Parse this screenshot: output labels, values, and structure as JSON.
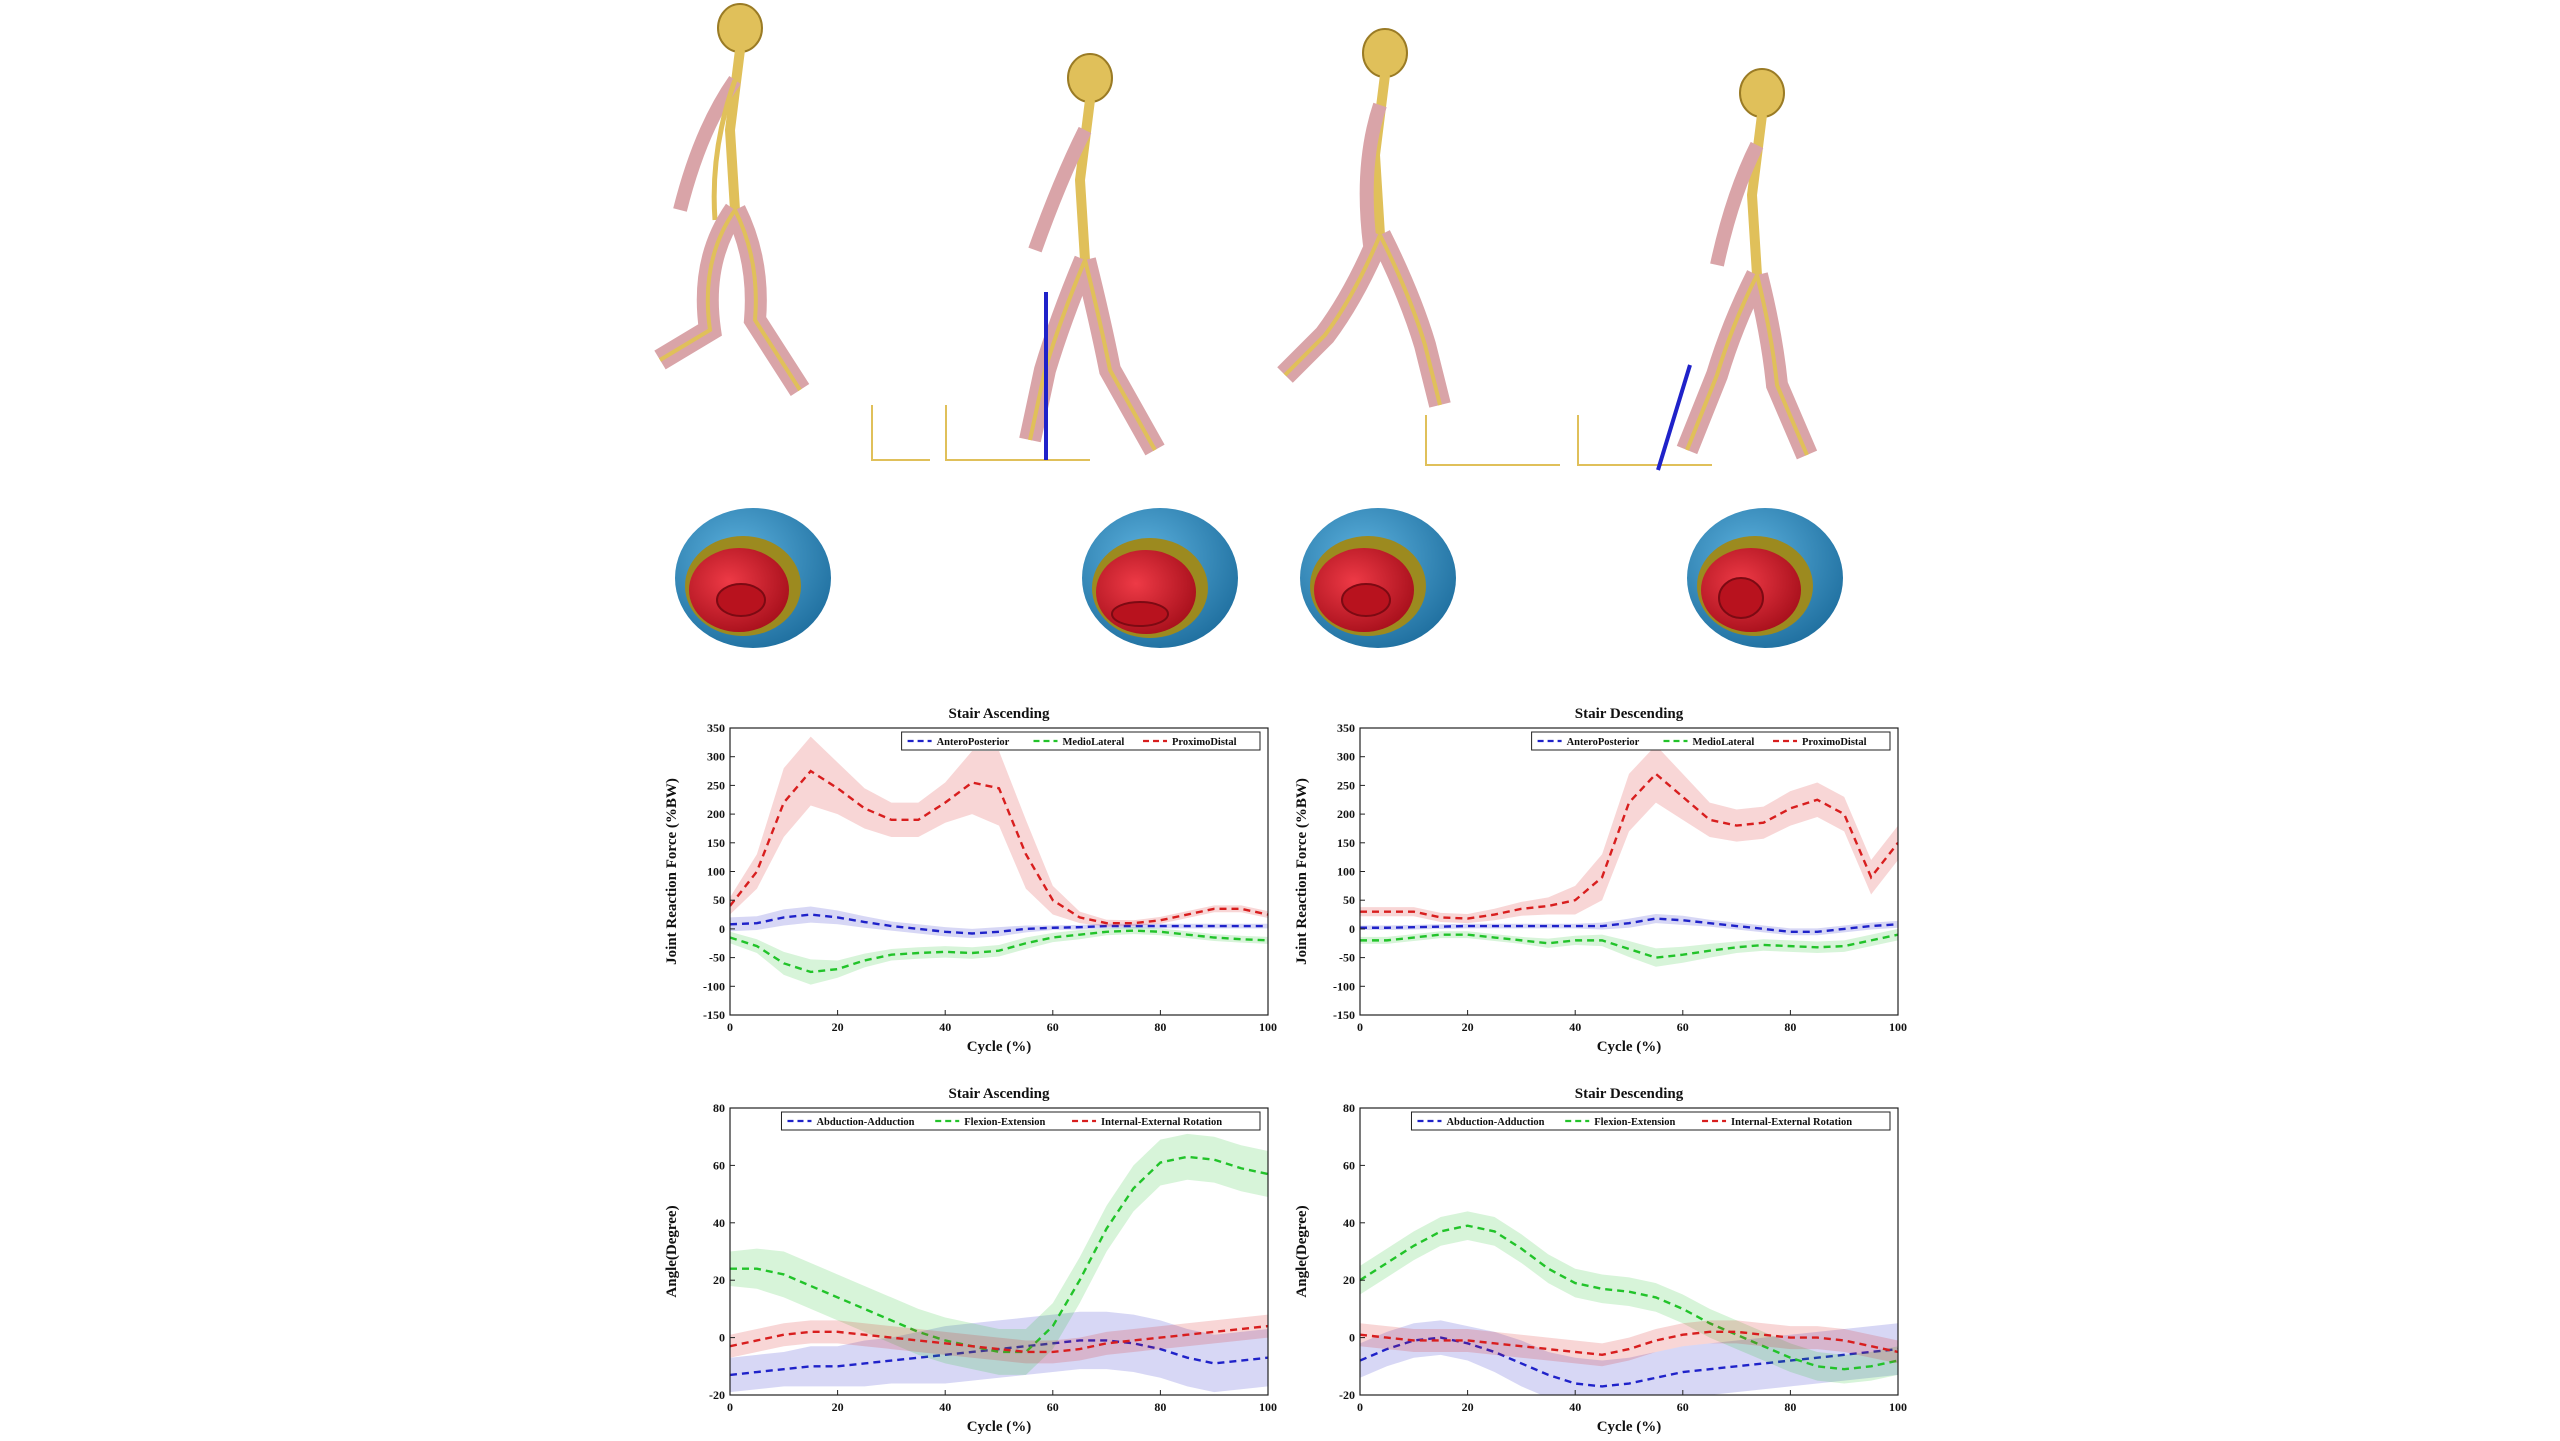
{
  "colors": {
    "antero_posterior": "#1f22c9",
    "medio_lateral": "#22c32a",
    "proximo_distal": "#d81e1e",
    "abduction_adduction": "#1f22c9",
    "flexion_extension": "#22c32a",
    "internal_external_rotation": "#d81e1e",
    "bone": "#e0c05a",
    "muscle": "#d9a4a8",
    "cup_shell": "#3a8fc4",
    "cup_liner": "#d01a2a"
  },
  "illustration": {
    "icons": [
      "skeleton-model-icon",
      "acetabular-cup-icon",
      "force-vector-icon"
    ]
  },
  "chart_data": [
    {
      "type": "line",
      "title": "Stair Ascending",
      "xlabel": "Cycle (%)",
      "ylabel": "Joint Reaction Force (%BW)",
      "xlim": [
        0,
        100
      ],
      "ylim": [
        -150,
        350
      ],
      "xticks": [
        0,
        20,
        40,
        60,
        80,
        100
      ],
      "yticks": [
        -150,
        -100,
        -50,
        0,
        50,
        100,
        150,
        200,
        250,
        300,
        350
      ],
      "grid": false,
      "legend": "top",
      "x": [
        0,
        5,
        10,
        15,
        20,
        25,
        30,
        35,
        40,
        45,
        50,
        55,
        60,
        65,
        70,
        75,
        80,
        85,
        90,
        95,
        100
      ],
      "series": [
        {
          "name": "AnteroPosterior",
          "color": "#1f22c9",
          "values": [
            8,
            10,
            20,
            25,
            20,
            12,
            5,
            0,
            -5,
            -8,
            -5,
            0,
            2,
            3,
            5,
            5,
            5,
            5,
            5,
            5,
            5
          ],
          "band": [
            12,
            12,
            14,
            14,
            12,
            10,
            8,
            8,
            8,
            8,
            8,
            6,
            4,
            4,
            4,
            4,
            4,
            4,
            4,
            4,
            4
          ]
        },
        {
          "name": "MedioLateral",
          "color": "#22c32a",
          "values": [
            -15,
            -30,
            -60,
            -75,
            -70,
            -55,
            -45,
            -42,
            -40,
            -42,
            -38,
            -25,
            -15,
            -10,
            -5,
            -3,
            -5,
            -10,
            -15,
            -18,
            -20
          ],
          "band": [
            10,
            12,
            20,
            22,
            15,
            12,
            10,
            10,
            10,
            10,
            10,
            10,
            8,
            8,
            6,
            6,
            6,
            6,
            6,
            6,
            6
          ]
        },
        {
          "name": "ProximoDistal",
          "color": "#d81e1e",
          "values": [
            40,
            100,
            220,
            275,
            245,
            210,
            190,
            190,
            220,
            255,
            245,
            130,
            50,
            20,
            10,
            10,
            15,
            25,
            35,
            35,
            25
          ],
          "band": [
            15,
            30,
            60,
            60,
            45,
            35,
            30,
            30,
            35,
            55,
            65,
            60,
            25,
            10,
            6,
            5,
            6,
            6,
            6,
            6,
            6
          ]
        }
      ]
    },
    {
      "type": "line",
      "title": "Stair Descending",
      "xlabel": "Cycle (%)",
      "ylabel": "Joint Reaction Force (%BW)",
      "xlim": [
        0,
        100
      ],
      "ylim": [
        -150,
        350
      ],
      "xticks": [
        0,
        20,
        40,
        60,
        80,
        100
      ],
      "yticks": [
        -150,
        -100,
        -50,
        0,
        50,
        100,
        150,
        200,
        250,
        300,
        350
      ],
      "grid": false,
      "legend": "top",
      "x": [
        0,
        5,
        10,
        15,
        20,
        25,
        30,
        35,
        40,
        45,
        50,
        55,
        60,
        65,
        70,
        75,
        80,
        85,
        90,
        95,
        100
      ],
      "series": [
        {
          "name": "AnteroPosterior",
          "color": "#1f22c9",
          "values": [
            2,
            2,
            3,
            4,
            5,
            5,
            5,
            5,
            5,
            5,
            10,
            18,
            15,
            10,
            5,
            0,
            -5,
            -5,
            0,
            5,
            8
          ],
          "band": [
            4,
            4,
            4,
            4,
            4,
            4,
            4,
            4,
            4,
            6,
            8,
            8,
            8,
            6,
            6,
            6,
            6,
            6,
            6,
            6,
            6
          ]
        },
        {
          "name": "MedioLateral",
          "color": "#22c32a",
          "values": [
            -20,
            -20,
            -15,
            -10,
            -10,
            -15,
            -20,
            -25,
            -20,
            -20,
            -35,
            -50,
            -45,
            -38,
            -32,
            -28,
            -30,
            -32,
            -30,
            -20,
            -10
          ],
          "band": [
            6,
            6,
            6,
            6,
            6,
            6,
            6,
            8,
            8,
            10,
            14,
            16,
            14,
            12,
            10,
            10,
            10,
            10,
            10,
            10,
            10
          ]
        },
        {
          "name": "ProximoDistal",
          "color": "#d81e1e",
          "values": [
            30,
            30,
            30,
            20,
            18,
            25,
            35,
            40,
            50,
            90,
            220,
            270,
            230,
            190,
            180,
            185,
            210,
            225,
            200,
            90,
            150
          ],
          "band": [
            8,
            8,
            8,
            8,
            8,
            10,
            12,
            15,
            25,
            40,
            50,
            50,
            40,
            30,
            28,
            28,
            30,
            30,
            30,
            30,
            30
          ]
        }
      ]
    },
    {
      "type": "line",
      "title": "Stair Ascending",
      "xlabel": "Cycle (%)",
      "ylabel": "Angle(Degree)",
      "xlim": [
        0,
        100
      ],
      "ylim": [
        -20,
        80
      ],
      "xticks": [
        0,
        20,
        40,
        60,
        80,
        100
      ],
      "yticks": [
        -20,
        0,
        20,
        40,
        60,
        80
      ],
      "grid": false,
      "legend": "top",
      "x": [
        0,
        5,
        10,
        15,
        20,
        25,
        30,
        35,
        40,
        45,
        50,
        55,
        60,
        65,
        70,
        75,
        80,
        85,
        90,
        95,
        100
      ],
      "series": [
        {
          "name": "Abduction-Adduction",
          "color": "#1f22c9",
          "values": [
            -13,
            -12,
            -11,
            -10,
            -10,
            -9,
            -8,
            -7,
            -6,
            -5,
            -4,
            -3,
            -2,
            -1,
            -1,
            -2,
            -4,
            -7,
            -9,
            -8,
            -7
          ],
          "band": [
            6,
            6,
            6,
            7,
            7,
            8,
            8,
            9,
            10,
            10,
            10,
            10,
            10,
            10,
            10,
            10,
            10,
            10,
            10,
            10,
            10
          ]
        },
        {
          "name": "Flexion-Extension",
          "color": "#22c32a",
          "values": [
            24,
            24,
            22,
            18,
            14,
            10,
            6,
            2,
            -1,
            -3,
            -5,
            -5,
            4,
            20,
            38,
            52,
            61,
            63,
            62,
            59,
            57
          ],
          "band": [
            6,
            7,
            8,
            8,
            8,
            8,
            8,
            8,
            8,
            8,
            8,
            8,
            8,
            8,
            8,
            8,
            8,
            8,
            8,
            8,
            8
          ]
        },
        {
          "name": "Internal-External Rotation",
          "color": "#d81e1e",
          "values": [
            -3,
            -1,
            1,
            2,
            2,
            1,
            0,
            -1,
            -2,
            -3,
            -4,
            -5,
            -5,
            -4,
            -2,
            -1,
            0,
            1,
            2,
            3,
            4
          ],
          "band": [
            4,
            4,
            4,
            4,
            4,
            4,
            4,
            4,
            4,
            4,
            4,
            4,
            4,
            4,
            4,
            4,
            4,
            4,
            4,
            4,
            4
          ]
        }
      ]
    },
    {
      "type": "line",
      "title": "Stair Descending",
      "xlabel": "Cycle (%)",
      "ylabel": "Angle(Degree)",
      "xlim": [
        0,
        100
      ],
      "ylim": [
        -20,
        80
      ],
      "xticks": [
        0,
        20,
        40,
        60,
        80,
        100
      ],
      "yticks": [
        -20,
        0,
        20,
        40,
        60,
        80
      ],
      "grid": false,
      "legend": "top",
      "x": [
        0,
        5,
        10,
        15,
        20,
        25,
        30,
        35,
        40,
        45,
        50,
        55,
        60,
        65,
        70,
        75,
        80,
        85,
        90,
        95,
        100
      ],
      "series": [
        {
          "name": "Abduction-Adduction",
          "color": "#1f22c9",
          "values": [
            -8,
            -4,
            -1,
            0,
            -2,
            -5,
            -9,
            -13,
            -16,
            -17,
            -16,
            -14,
            -12,
            -11,
            -10,
            -9,
            -8,
            -7,
            -6,
            -5,
            -4
          ],
          "band": [
            6,
            6,
            6,
            6,
            6,
            7,
            8,
            8,
            9,
            9,
            9,
            9,
            9,
            9,
            9,
            9,
            9,
            9,
            9,
            9,
            9
          ]
        },
        {
          "name": "Flexion-Extension",
          "color": "#22c32a",
          "values": [
            20,
            26,
            32,
            37,
            39,
            37,
            31,
            24,
            19,
            17,
            16,
            14,
            10,
            5,
            1,
            -3,
            -7,
            -10,
            -11,
            -10,
            -8
          ],
          "band": [
            5,
            5,
            5,
            5,
            5,
            5,
            5,
            5,
            5,
            5,
            5,
            5,
            5,
            5,
            5,
            5,
            5,
            5,
            5,
            5,
            5
          ]
        },
        {
          "name": "Internal-External Rotation",
          "color": "#d81e1e",
          "values": [
            1,
            0,
            -1,
            -1,
            -1,
            -2,
            -3,
            -4,
            -5,
            -6,
            -4,
            -1,
            1,
            2,
            2,
            1,
            0,
            0,
            -1,
            -3,
            -5
          ],
          "band": [
            4,
            4,
            4,
            4,
            4,
            4,
            4,
            4,
            4,
            4,
            4,
            4,
            4,
            4,
            4,
            4,
            4,
            4,
            4,
            4,
            4
          ]
        }
      ]
    }
  ]
}
